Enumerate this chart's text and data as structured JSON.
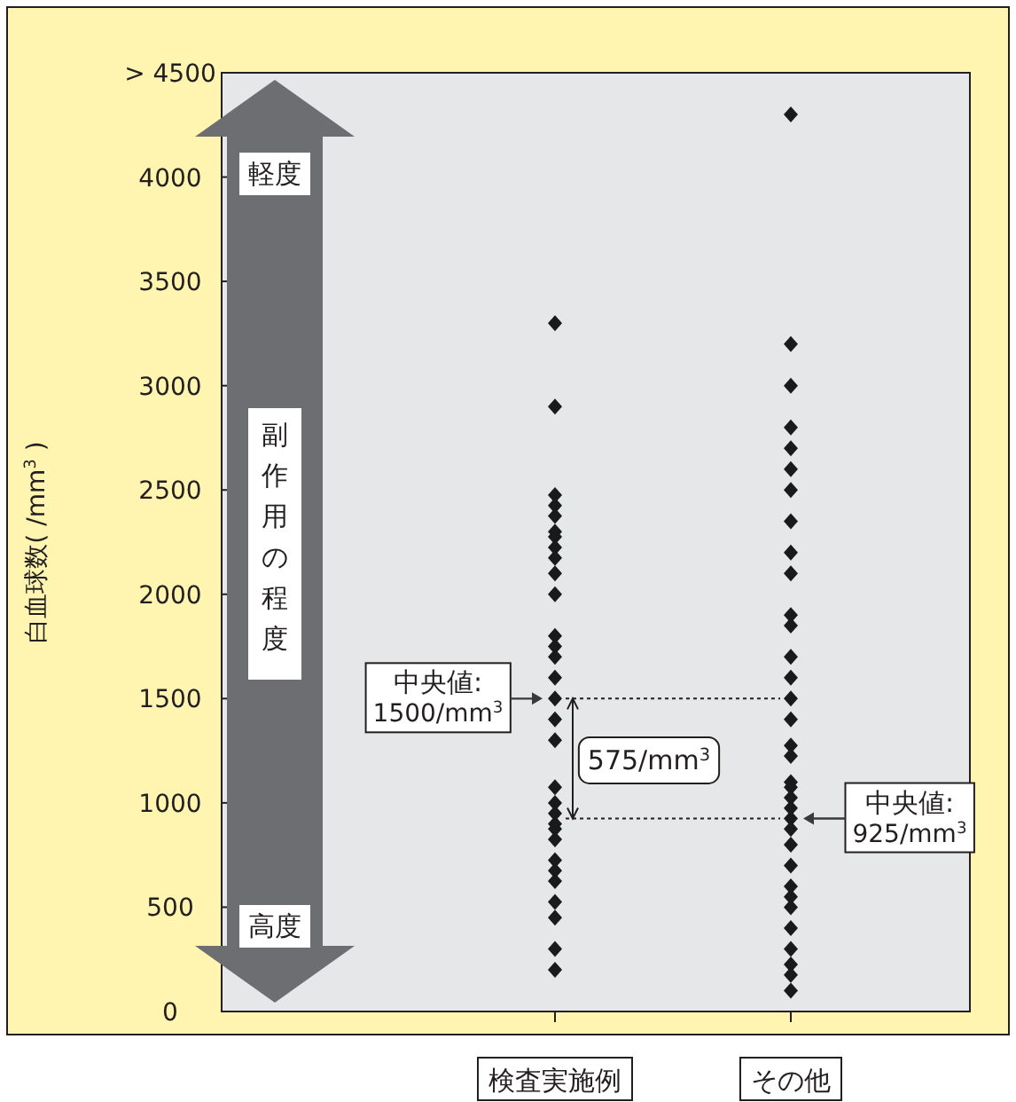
{
  "chart_data": {
    "type": "scatter",
    "marker": "diamond",
    "ylabel": "白血球数( /mm$^{3}$ )",
    "categories": [
      "検査実施例",
      "その他"
    ],
    "ylim": [
      0,
      4500
    ],
    "yticks": [
      0,
      500,
      1000,
      1500,
      2000,
      2500,
      3000,
      3500,
      4000,
      {
        "value": 4500,
        "label": "> 4500"
      }
    ],
    "series": [
      {
        "color": "#1a1a1a",
        "x": [
          "検査実施例",
          "検査実施例",
          "検査実施例",
          "検査実施例",
          "検査実施例",
          "検査実施例",
          "検査実施例",
          "検査実施例",
          "検査実施例",
          "検査実施例",
          "検査実施例",
          "検査実施例",
          "検査実施例",
          "検査実施例",
          "検査実施例",
          "検査実施例",
          "検査実施例",
          "検査実施例",
          "検査実施例",
          "検査実施例",
          "検査実施例",
          "検査実施例",
          "検査実施例",
          "検査実施例",
          "検査実施例",
          "検査実施例",
          "検査実施例",
          "検査実施例",
          "検査実施例",
          "検査実施例",
          "検査実施例"
        ],
        "values": [
          3300,
          2900,
          2475,
          2425,
          2375,
          2300,
          2275,
          2225,
          2175,
          2100,
          2000,
          1800,
          1750,
          1700,
          1600,
          1500,
          1400,
          1300,
          1075,
          1000,
          950,
          900,
          875,
          825,
          725,
          675,
          625,
          525,
          450,
          300,
          200
        ]
      },
      {
        "color": "#1a1a1a",
        "x": [
          "その他",
          "その他",
          "その他",
          "その他",
          "その他",
          "その他",
          "その他",
          "その他",
          "その他",
          "その他",
          "その他",
          "その他",
          "その他",
          "その他",
          "その他",
          "その他",
          "その他",
          "その他",
          "その他",
          "その他",
          "その他",
          "その他",
          "その他",
          "その他",
          "その他",
          "その他",
          "その他",
          "その他",
          "その他",
          "その他",
          "その他",
          "その他",
          "その他",
          "その他"
        ],
        "values": [
          4300,
          3200,
          3000,
          2800,
          2700,
          2600,
          2500,
          2350,
          2200,
          2100,
          1900,
          1850,
          1700,
          1600,
          1500,
          1400,
          1275,
          1225,
          1100,
          1075,
          1025,
          975,
          925,
          875,
          800,
          700,
          600,
          550,
          500,
          400,
          300,
          225,
          175,
          100
        ]
      }
    ],
    "annotations": [
      {
        "text": "軽度"
      },
      {
        "text": "副作用の程度"
      },
      {
        "text": "高度"
      },
      {
        "text": "中央値: 1500/mm$^{3}$",
        "x": "検査実施例",
        "y": 1500
      },
      {
        "text": "575/mm$^{3}$"
      },
      {
        "text": "中央値: 925/mm$^{3}$",
        "x": "その他",
        "y": 925
      }
    ],
    "ref_lines": [
      {
        "axis": "y",
        "value": 1500,
        "line_style": "dotted"
      },
      {
        "axis": "y",
        "value": 925,
        "line_style": "dotted"
      }
    ]
  }
}
